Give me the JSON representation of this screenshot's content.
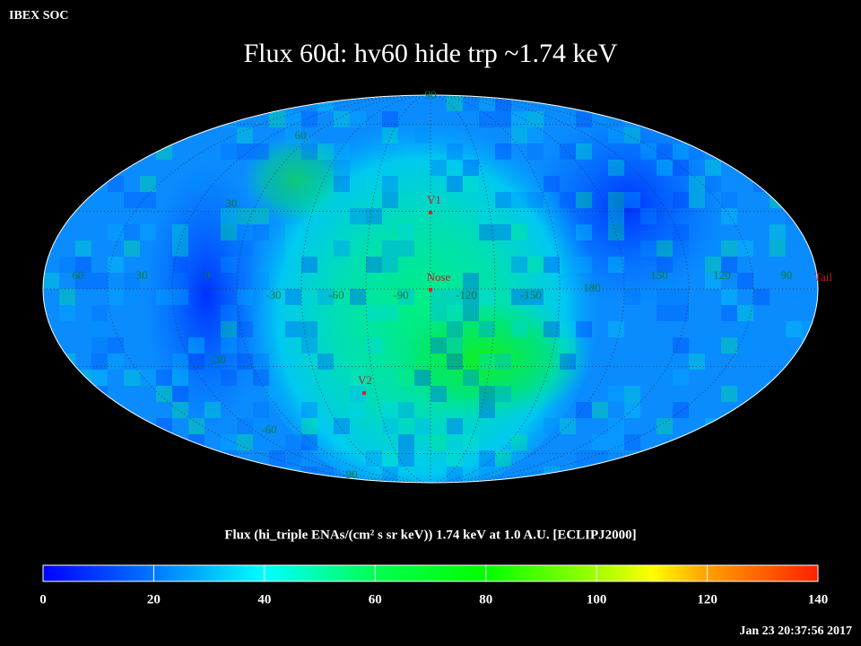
{
  "header": {
    "source": "IBEX SOC",
    "title": "Flux   60d: hv60 hide trp ~1.74 keV",
    "timestamp": "Jan 23 20:37:56 2017"
  },
  "map": {
    "equator_labels": [
      "60",
      "30",
      "0",
      "-30",
      "-60",
      "-90",
      "-120",
      "-150",
      "180",
      "150",
      "120",
      "90"
    ],
    "latitude_labels": [
      "90",
      "60",
      "30",
      "-30",
      "-60",
      "-90"
    ],
    "markers": [
      "V1",
      "Nose",
      "V2",
      "Tail"
    ]
  },
  "colorbar": {
    "label": "Flux (hi_triple ENAs/(cm² s sr keV))  1.74 keV at 1.0 A.U. [ECLIPJ2000]",
    "lim": [
      0,
      140
    ],
    "ticks": [
      0,
      20,
      40,
      60,
      80,
      100,
      120,
      140
    ]
  }
}
